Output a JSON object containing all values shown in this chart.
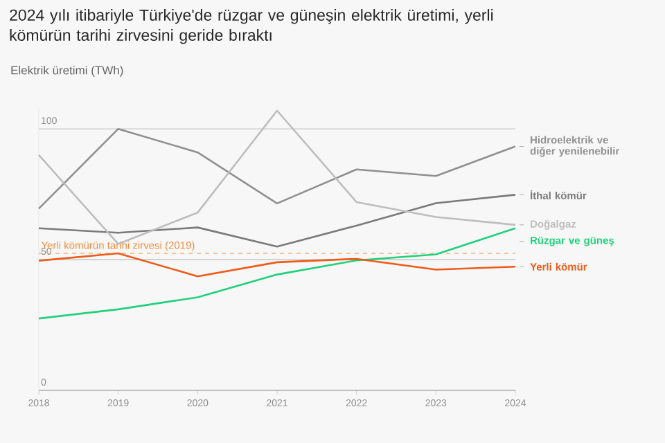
{
  "chart_data": {
    "type": "line",
    "title": "2024 yılı itibariyle Türkiye'de rüzgar ve güneşin elektrik üretimi, yerli kömürün tarihi zirvesini geride bıraktı",
    "ylabel": "Elektrik üretimi (TWh)",
    "x": [
      2018,
      2019,
      2020,
      2021,
      2022,
      2023,
      2024
    ],
    "xlim": [
      2018,
      2024
    ],
    "xticks": [
      2018,
      2019,
      2020,
      2021,
      2022,
      2023,
      2024
    ],
    "ylim": [
      0,
      108
    ],
    "yticks": [
      0,
      50,
      100
    ],
    "grid": "y",
    "series": [
      {
        "name": "Hidroelektrik ve diğer yenilenebilir",
        "color": "#8f8f8f",
        "values": [
          69.5,
          100,
          91,
          71.5,
          84.5,
          82,
          93.3
        ]
      },
      {
        "name": "İthal kömür",
        "color": "#7a7a7a",
        "values": [
          62,
          60.3,
          62.3,
          55,
          63,
          71.6,
          74.8
        ]
      },
      {
        "name": "Doğalgaz",
        "color": "#bdbdbd",
        "values": [
          90,
          56,
          68,
          107,
          72,
          66.3,
          63.3
        ]
      },
      {
        "name": "Rüzgar ve güneş",
        "color": "#1fd17a",
        "values": [
          27.5,
          31,
          35.6,
          44.3,
          49.7,
          52,
          62
        ]
      },
      {
        "name": "Yerli kömür",
        "color": "#ef5a17",
        "values": [
          49.6,
          52.4,
          43.6,
          49,
          50.3,
          46.2,
          47.3
        ]
      }
    ],
    "ref_lines": [
      {
        "axis": "y",
        "value": 52.4,
        "label": "Yerli kömürün tarihi zirvesi (2019)",
        "color": "#f7b07a",
        "line_style": "dashed"
      }
    ]
  }
}
